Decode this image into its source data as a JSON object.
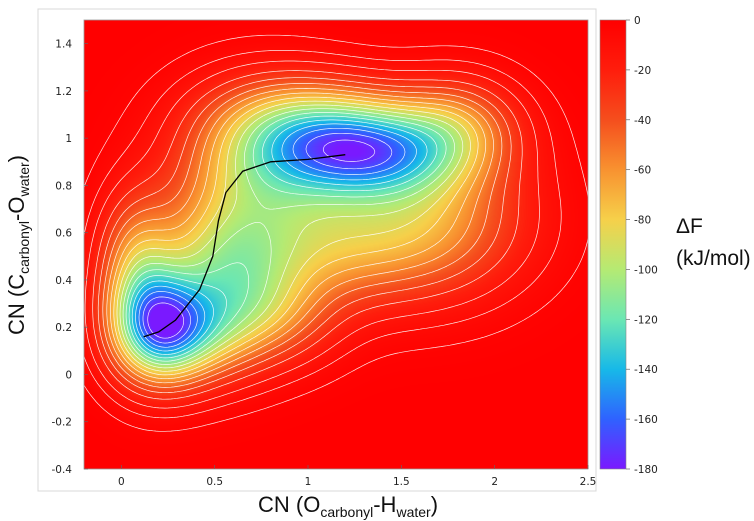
{
  "chart_data": {
    "type": "heatmap",
    "title": "",
    "xlabel": {
      "base": "CN (O",
      "sub1": "carbonyl",
      "mid": "-H",
      "sub2": "water",
      "end": ")"
    },
    "ylabel": {
      "base": "CN (C",
      "sub1": "carbonyl",
      "mid": "-O",
      "sub2": "water",
      "end": ")"
    },
    "xlim": [
      -0.2,
      2.5
    ],
    "ylim": [
      -0.4,
      1.5
    ],
    "xticks": [
      "0",
      "0.5",
      "1",
      "1.5",
      "2",
      "2.5"
    ],
    "xtick_values": [
      0,
      0.5,
      1,
      1.5,
      2,
      2.5
    ],
    "yticks": [
      "-0.4",
      "-0.2",
      "0",
      "0.2",
      "0.4",
      "0.6",
      "0.8",
      "1",
      "1.2",
      "1.4"
    ],
    "ytick_values": [
      -0.4,
      -0.2,
      0,
      0.2,
      0.4,
      0.6,
      0.8,
      1,
      1.2,
      1.4
    ],
    "colorbar": {
      "label_line1": "ΔF",
      "label_line2": "(kJ/mol)",
      "range": [
        -180,
        0
      ],
      "ticks": [
        "0",
        "-20",
        "-40",
        "-60",
        "-80",
        "-100",
        "-120",
        "-140",
        "-160",
        "-180"
      ],
      "tick_values": [
        0,
        -20,
        -40,
        -60,
        -80,
        -100,
        -120,
        -140,
        -160,
        -180
      ],
      "colors": [
        "#7a19ff",
        "#2f62ff",
        "#17b9e8",
        "#6be7b3",
        "#b5ea73",
        "#f6d04a",
        "#f89230",
        "#f54e1d",
        "#ff1d0c",
        "#ff0000"
      ]
    },
    "minima": [
      {
        "x": 1.2,
        "y": 0.93,
        "depth": -172
      },
      {
        "x": 0.12,
        "y": 0.16,
        "depth": -142
      }
    ],
    "path": [
      {
        "x": 0.12,
        "y": 0.16
      },
      {
        "x": 0.2,
        "y": 0.18
      },
      {
        "x": 0.29,
        "y": 0.23
      },
      {
        "x": 0.42,
        "y": 0.36
      },
      {
        "x": 0.49,
        "y": 0.5
      },
      {
        "x": 0.52,
        "y": 0.65
      },
      {
        "x": 0.56,
        "y": 0.77
      },
      {
        "x": 0.65,
        "y": 0.86
      },
      {
        "x": 0.8,
        "y": 0.9
      },
      {
        "x": 1.0,
        "y": 0.91
      },
      {
        "x": 1.2,
        "y": 0.93
      }
    ],
    "contour_levels": [
      -175,
      -165,
      -155,
      -145,
      -135,
      -125,
      -115,
      -105,
      -95,
      -85,
      -75,
      -65,
      -55,
      -45,
      -35,
      -25,
      -15,
      -8,
      -3
    ],
    "contour_color": "#ffffff",
    "path_color": "#000000"
  }
}
